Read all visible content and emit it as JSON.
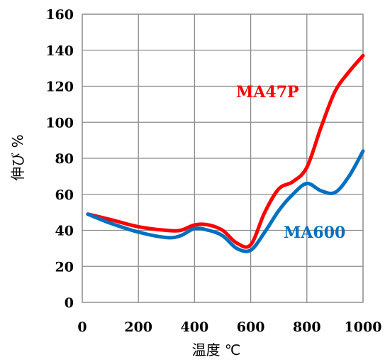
{
  "chart_data": {
    "type": "line",
    "xlabel": "温度 ℃",
    "ylabel": "伸び %",
    "xlim": [
      0,
      1000
    ],
    "ylim": [
      0,
      160
    ],
    "xticks": [
      0,
      200,
      400,
      600,
      800,
      1000
    ],
    "yticks": [
      0,
      20,
      40,
      60,
      80,
      100,
      120,
      140,
      160
    ],
    "grid": true,
    "series": [
      {
        "name": "MA47P",
        "color": "#ff0000",
        "x": [
          20,
          100,
          200,
          300,
          350,
          400,
          450,
          500,
          550,
          600,
          650,
          700,
          750,
          800,
          850,
          900,
          950,
          1000
        ],
        "y": [
          49,
          46,
          42,
          40,
          40,
          43,
          43,
          40,
          33,
          32,
          50,
          63,
          67,
          75,
          97,
          117,
          128,
          137
        ]
      },
      {
        "name": "MA600",
        "color": "#0070c0",
        "x": [
          20,
          100,
          200,
          300,
          350,
          400,
          450,
          500,
          550,
          600,
          650,
          700,
          750,
          800,
          850,
          900,
          950,
          1000
        ],
        "y": [
          49,
          44,
          39,
          36,
          37,
          41,
          40,
          37,
          30,
          29,
          39,
          51,
          60,
          66,
          62,
          61,
          70,
          84
        ]
      }
    ]
  }
}
